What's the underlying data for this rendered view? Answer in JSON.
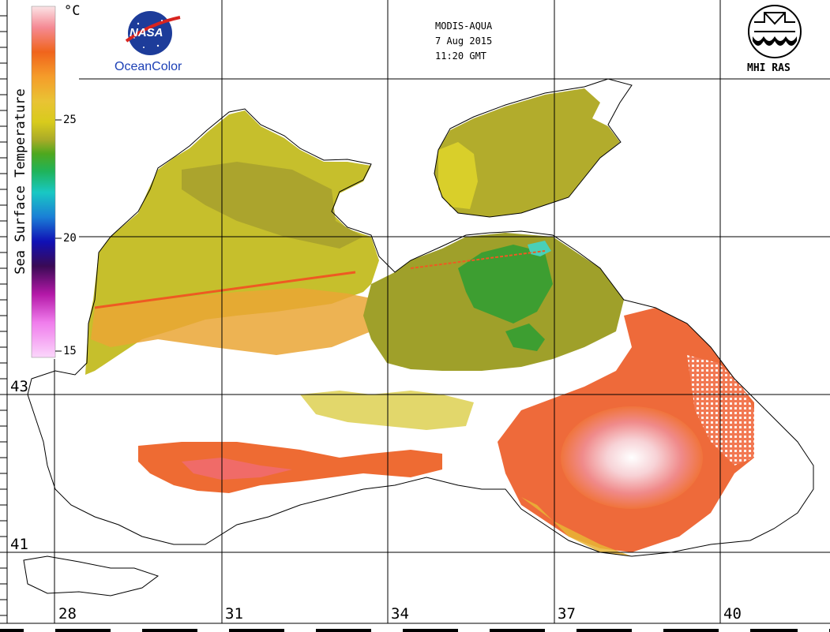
{
  "header": {
    "satellite": "MODIS-AQUA",
    "date": "7 Aug 2015",
    "time": "11:20 GMT"
  },
  "logos": {
    "nasa_text": "NASA",
    "oceancolor_text": "OceanColor",
    "mhi_text": "MHI RAS"
  },
  "colorbar": {
    "title": "Sea Surface Temperature",
    "unit": "°C",
    "ticks": [
      "25",
      "20",
      "15"
    ],
    "colors": [
      "#fbe3e6",
      "#f58a94",
      "#f0641c",
      "#f59c2a",
      "#e9c334",
      "#dccc1c",
      "#b5b32a",
      "#4ea81e",
      "#1fb35a",
      "#19c8c3",
      "#1a7fd6",
      "#1010b5",
      "#3a0a55",
      "#b418a8",
      "#f07cec",
      "#fbd6fb"
    ]
  },
  "grid": {
    "longitudes": [
      "28",
      "31",
      "34",
      "37",
      "40"
    ],
    "latitudes": [
      "43",
      "41"
    ]
  }
}
